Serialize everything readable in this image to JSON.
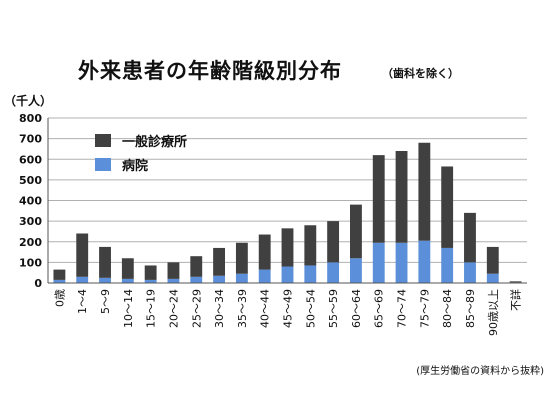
{
  "title": "外来患者の年齢階級別分布",
  "subtitle": "（歯科を除く）",
  "unit_label": "（千人）",
  "source_note": "(厚生労働省の資料から抜粋)",
  "colors": {
    "general_clinic": "#404040",
    "hospital": "#5b8fd9",
    "grid": "#b0b0b0"
  },
  "chart_data": {
    "type": "bar",
    "stacked": true,
    "categories": [
      "0歳",
      "1～4",
      "5～9",
      "10～14",
      "15～19",
      "20～24",
      "25～29",
      "30～34",
      "35～39",
      "40～44",
      "45～49",
      "50～54",
      "55～59",
      "60～64",
      "65～69",
      "70～74",
      "75～79",
      "80～84",
      "85～89",
      "90歳以上",
      "不詳"
    ],
    "series": [
      {
        "name": "病院",
        "values": [
          15,
          30,
          25,
          20,
          15,
          20,
          30,
          35,
          45,
          65,
          80,
          85,
          100,
          120,
          195,
          195,
          205,
          170,
          100,
          45,
          3
        ]
      },
      {
        "name": "一般診療所",
        "values": [
          50,
          210,
          150,
          100,
          70,
          80,
          100,
          135,
          150,
          170,
          185,
          195,
          200,
          260,
          425,
          445,
          475,
          395,
          240,
          130,
          5
        ]
      }
    ],
    "legend_order": [
      "一般診療所",
      "病院"
    ],
    "ylim": [
      0,
      800
    ],
    "yticks": [
      "0",
      "100",
      "200",
      "300",
      "400",
      "500",
      "600",
      "700",
      "800"
    ],
    "grid": true,
    "legend_position": "top-left"
  }
}
